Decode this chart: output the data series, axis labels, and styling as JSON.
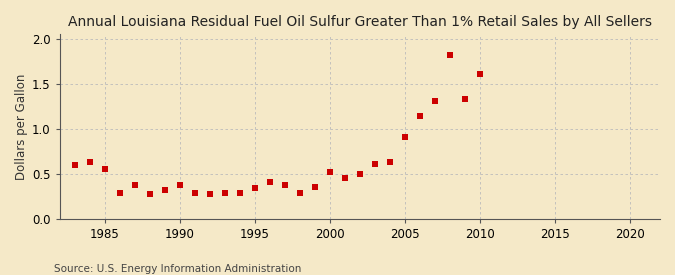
{
  "title": "Annual Louisiana Residual Fuel Oil Sulfur Greater Than 1% Retail Sales by All Sellers",
  "ylabel": "Dollars per Gallon",
  "source": "Source: U.S. Energy Information Administration",
  "background_color": "#f5e9c8",
  "plot_bg_color": "#f5e9c8",
  "xlim": [
    1982,
    2022
  ],
  "ylim": [
    0.0,
    2.05
  ],
  "xticks": [
    1985,
    1990,
    1995,
    2000,
    2005,
    2010,
    2015,
    2020
  ],
  "yticks": [
    0.0,
    0.5,
    1.0,
    1.5,
    2.0
  ],
  "data": [
    [
      1983,
      0.6
    ],
    [
      1984,
      0.63
    ],
    [
      1985,
      0.55
    ],
    [
      1986,
      0.29
    ],
    [
      1987,
      0.38
    ],
    [
      1988,
      0.27
    ],
    [
      1989,
      0.32
    ],
    [
      1990,
      0.38
    ],
    [
      1991,
      0.29
    ],
    [
      1992,
      0.28
    ],
    [
      1993,
      0.29
    ],
    [
      1994,
      0.29
    ],
    [
      1995,
      0.34
    ],
    [
      1996,
      0.41
    ],
    [
      1997,
      0.38
    ],
    [
      1998,
      0.29
    ],
    [
      1999,
      0.35
    ],
    [
      2000,
      0.52
    ],
    [
      2001,
      0.45
    ],
    [
      2002,
      0.5
    ],
    [
      2003,
      0.61
    ],
    [
      2004,
      0.63
    ],
    [
      2005,
      0.91
    ],
    [
      2006,
      1.14
    ],
    [
      2007,
      1.31
    ],
    [
      2008,
      1.82
    ],
    [
      2009,
      1.33
    ],
    [
      2010,
      1.61
    ]
  ],
  "marker_color": "#cc0000",
  "marker_size": 18,
  "grid_color": "#bbbbbb",
  "title_fontsize": 10,
  "label_fontsize": 8.5,
  "tick_fontsize": 8.5,
  "source_fontsize": 7.5
}
